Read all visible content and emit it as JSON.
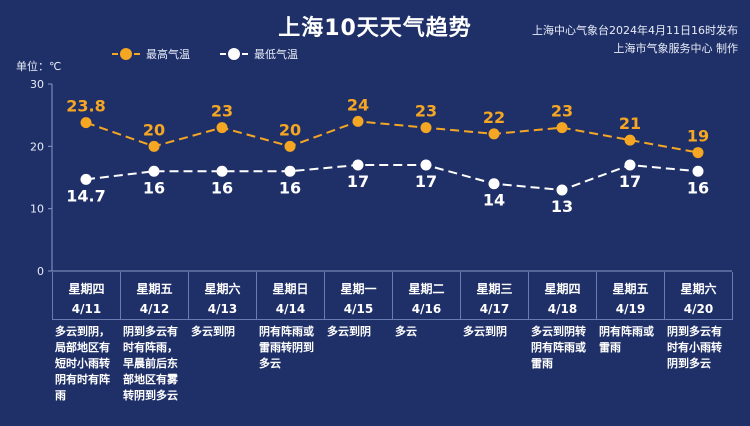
{
  "header": {
    "title": "上海10天天气趋势",
    "publisher_line1": "上海中心气象台2024年4月11日16时发布",
    "publisher_line2": "上海市气象服务中心 制作",
    "unit": "单位：℃"
  },
  "colors": {
    "background": "#1f3068",
    "high": "#f5a623",
    "low": "#ffffff"
  },
  "chart_data": {
    "type": "line",
    "title": "上海10天天气趋势",
    "ylabel": "单位：℃",
    "ylim": [
      0,
      30
    ],
    "yticks": [
      0,
      10,
      20,
      30
    ],
    "grid": false,
    "legend_position": "top-left",
    "categories": [
      "4/11",
      "4/12",
      "4/13",
      "4/14",
      "4/15",
      "4/16",
      "4/17",
      "4/18",
      "4/19",
      "4/20"
    ],
    "weekdays": [
      "星期四",
      "星期五",
      "星期六",
      "星期日",
      "星期一",
      "星期二",
      "星期三",
      "星期四",
      "星期五",
      "星期六"
    ],
    "series": [
      {
        "name": "最高气温",
        "values": [
          23.8,
          20,
          23,
          20,
          24,
          23,
          22,
          23,
          21,
          19
        ]
      },
      {
        "name": "最低气温",
        "values": [
          14.7,
          16,
          16,
          16,
          17,
          17,
          14,
          13,
          17,
          16
        ]
      }
    ]
  },
  "descriptions": [
    "多云到阴，局部地区有短时小雨转阴有时有阵雨",
    "阴到多云有时有阵雨，早晨前后东部地区有雾转阴到多云",
    "多云到阴",
    "阴有阵雨或雷雨转阴到多云",
    "多云到阴",
    "多云",
    "多云到阴",
    "多云到阴转阴有阵雨或雷雨",
    "阴有阵雨或雷雨",
    "阴到多云有时有小雨转阴到多云"
  ]
}
